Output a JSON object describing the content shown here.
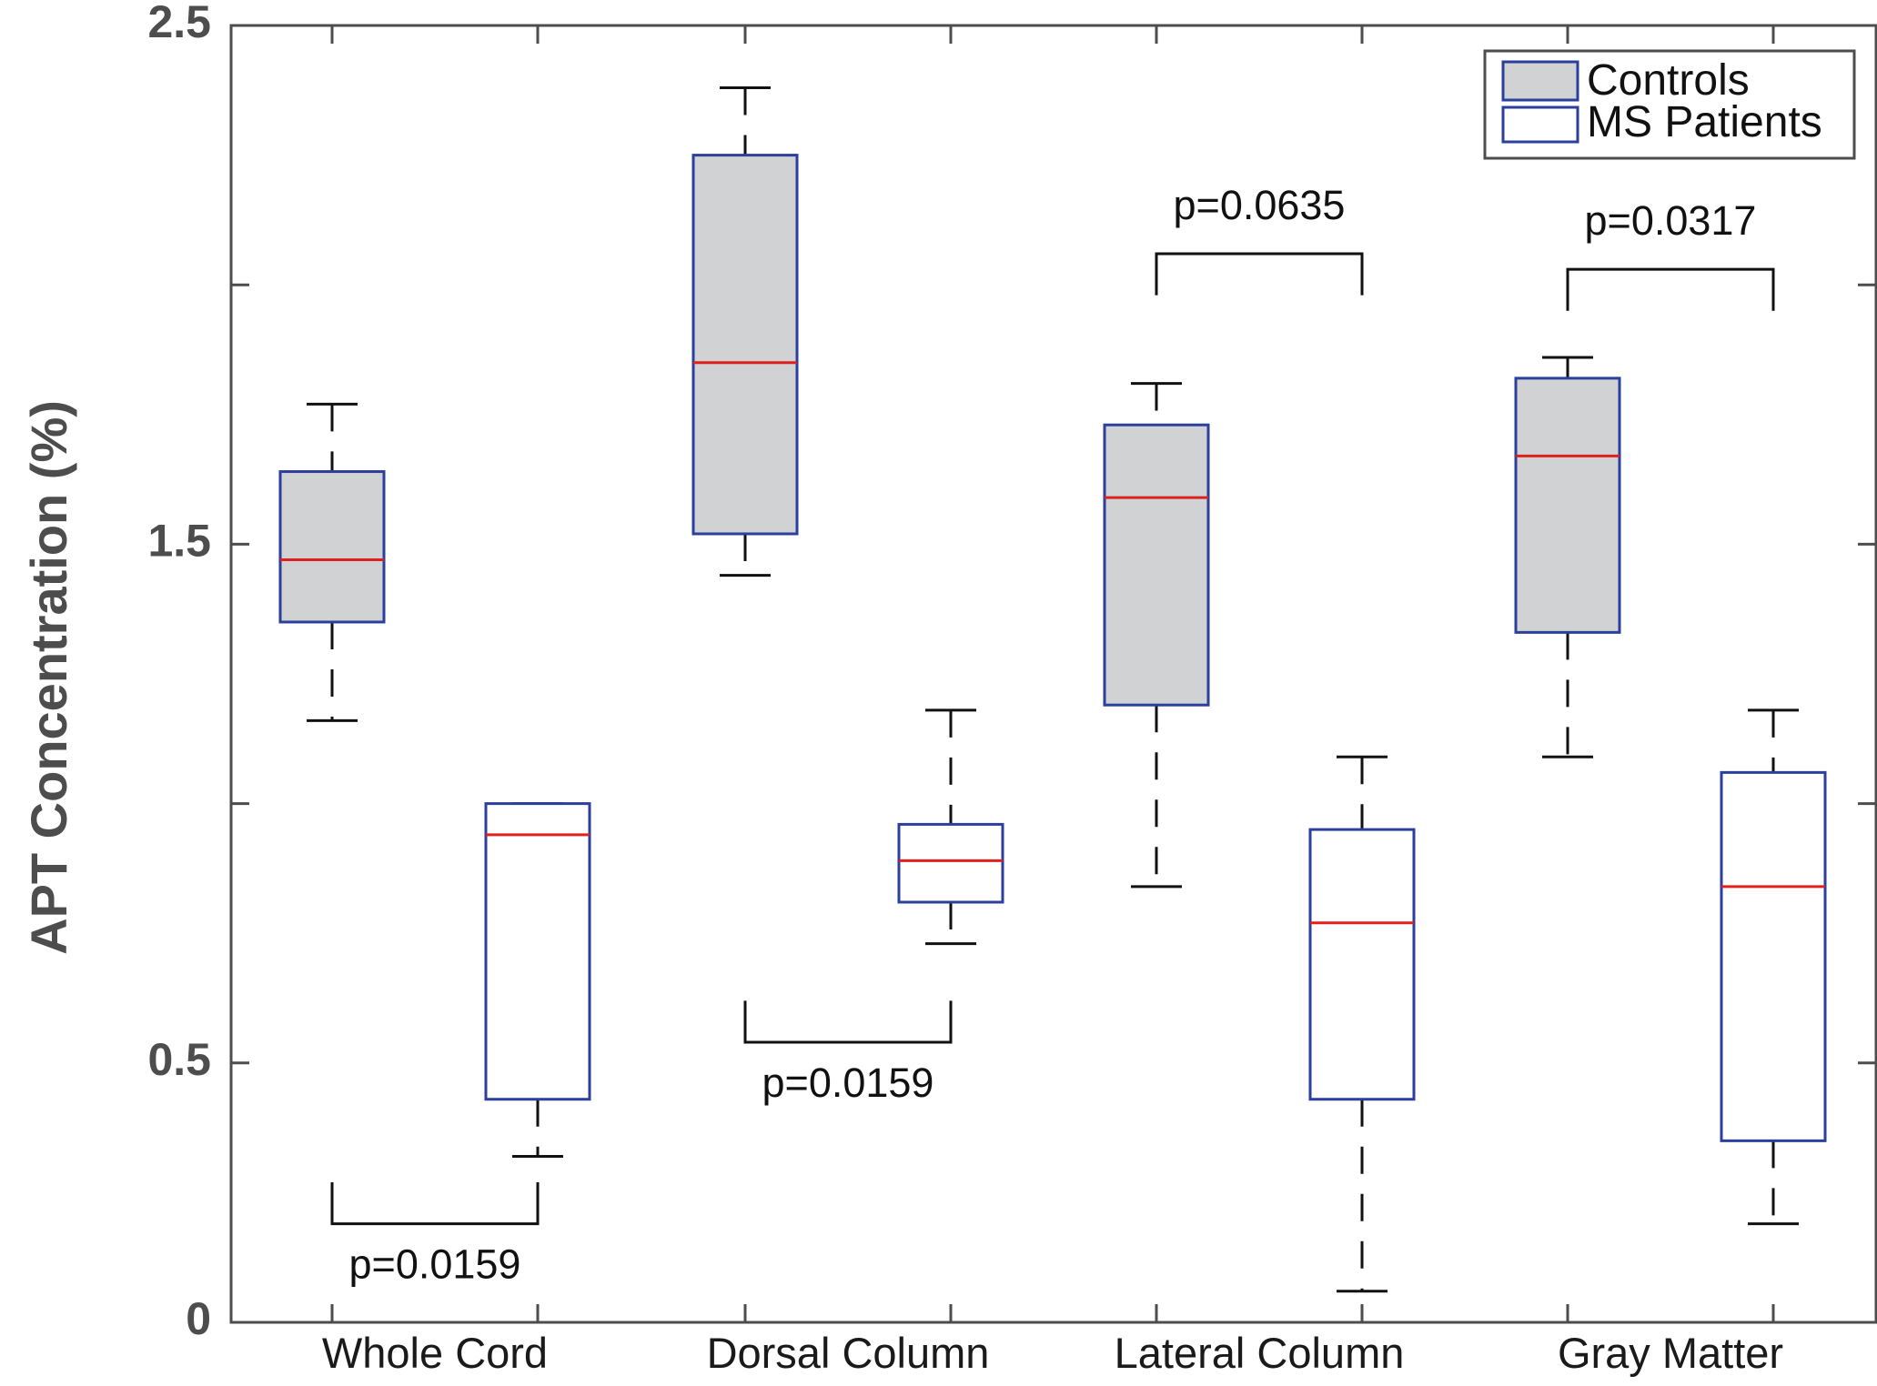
{
  "chart_data": {
    "type": "boxplot",
    "ylabel": "APT Concentration (%)",
    "xlabel": "",
    "ylim": [
      0,
      2.5
    ],
    "yticks": [
      {
        "value": 0,
        "label": "0"
      },
      {
        "value": 0.5,
        "label": "0.5"
      },
      {
        "value": 1.5,
        "label": "1.5"
      },
      {
        "value": 2.5,
        "label": "2.5"
      }
    ],
    "yticks_unlabeled": [
      1.0,
      2.0
    ],
    "categories": [
      "Whole Cord",
      "Dorsal Column",
      "Lateral Column",
      "Gray Matter"
    ],
    "colors": {
      "box_edge": "#2b3f9c",
      "median": "#e0201f",
      "controls_fill": "#d1d2d4",
      "patients_fill": "#ffffff",
      "axis": "#4d4d4d",
      "whisker": "#111111"
    },
    "series": [
      {
        "name": "Controls",
        "fill": "filled",
        "boxes": [
          {
            "category": "Whole Cord",
            "whisker_low": 1.16,
            "q1": 1.35,
            "median": 1.47,
            "q3": 1.64,
            "whisker_high": 1.77
          },
          {
            "category": "Dorsal Column",
            "whisker_low": 1.44,
            "q1": 1.52,
            "median": 1.85,
            "q3": 2.25,
            "whisker_high": 2.38
          },
          {
            "category": "Lateral Column",
            "whisker_low": 0.84,
            "q1": 1.19,
            "median": 1.59,
            "q3": 1.73,
            "whisker_high": 1.81
          },
          {
            "category": "Gray Matter",
            "whisker_low": 1.09,
            "q1": 1.33,
            "median": 1.67,
            "q3": 1.82,
            "whisker_high": 1.86
          }
        ]
      },
      {
        "name": "MS Patients",
        "fill": "open",
        "boxes": [
          {
            "category": "Whole Cord",
            "whisker_low": 0.32,
            "q1": 0.43,
            "median": 0.94,
            "q3": 1.0,
            "whisker_high": 1.0
          },
          {
            "category": "Dorsal Column",
            "whisker_low": 0.73,
            "q1": 0.81,
            "median": 0.89,
            "q3": 0.96,
            "whisker_high": 1.18
          },
          {
            "category": "Lateral Column",
            "whisker_low": 0.06,
            "q1": 0.43,
            "median": 0.77,
            "q3": 0.95,
            "whisker_high": 1.09
          },
          {
            "category": "Gray Matter",
            "whisker_low": 0.19,
            "q1": 0.35,
            "median": 0.84,
            "q3": 1.06,
            "whisker_high": 1.18
          }
        ]
      }
    ],
    "annotations": [
      {
        "category": "Whole Cord",
        "text": "p=0.0159",
        "position": "below",
        "bracket_y": 0.19,
        "bracket_depth": 0.08
      },
      {
        "category": "Dorsal Column",
        "text": "p=0.0159",
        "position": "below",
        "bracket_y": 0.54,
        "bracket_depth": 0.08
      },
      {
        "category": "Lateral Column",
        "text": "p=0.0635",
        "position": "above",
        "bracket_y": 2.06,
        "bracket_depth": 0.08
      },
      {
        "category": "Gray Matter",
        "text": "p=0.0317",
        "position": "above",
        "bracket_y": 2.03,
        "bracket_depth": 0.08
      }
    ],
    "legend": {
      "placement": "top-right",
      "entries": [
        {
          "label": "Controls",
          "fill": "filled"
        },
        {
          "label": "MS Patients",
          "fill": "open"
        }
      ]
    }
  }
}
